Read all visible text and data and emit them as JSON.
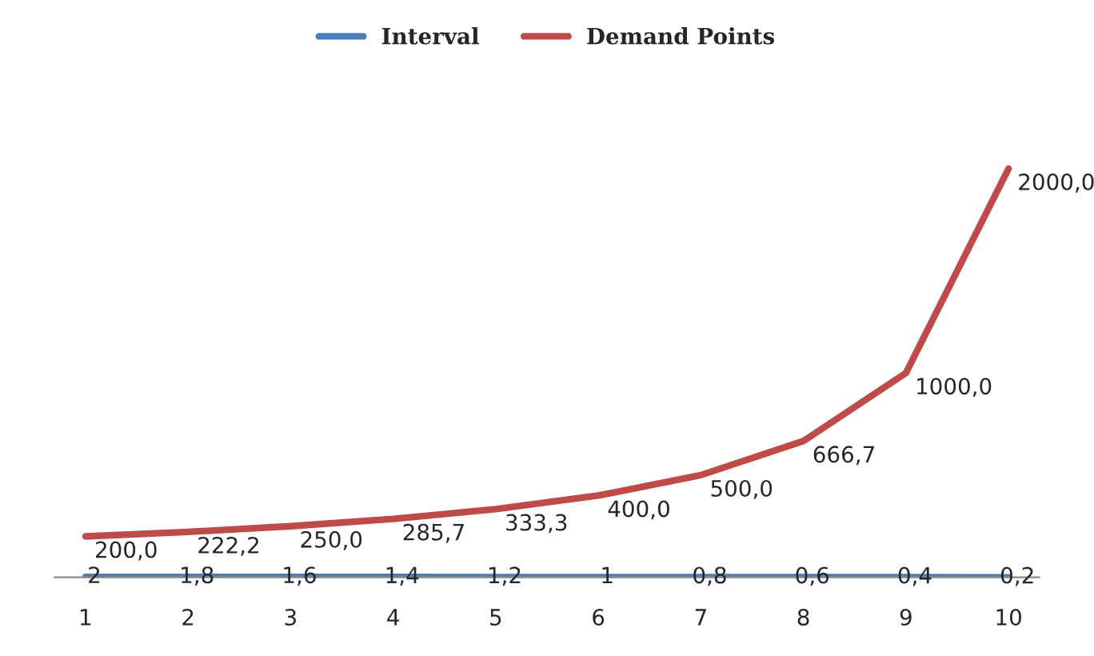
{
  "chart_data": {
    "type": "line",
    "categories": [
      "1",
      "2",
      "3",
      "4",
      "5",
      "6",
      "7",
      "8",
      "9",
      "10"
    ],
    "series": [
      {
        "name": "Interval",
        "color": "#4a7ebb",
        "values": [
          2,
          1.8,
          1.6,
          1.4,
          1.2,
          1,
          0.8,
          0.6,
          0.4,
          0.2
        ],
        "value_labels": [
          "2",
          "1,8",
          "1,6",
          "1,4",
          "1,2",
          "1",
          "0,8",
          "0,6",
          "0,4",
          "0,2"
        ]
      },
      {
        "name": "Demand Points",
        "color": "#be4b48",
        "values": [
          200.0,
          222.2,
          250.0,
          285.7,
          333.3,
          400.0,
          500.0,
          666.7,
          1000.0,
          2000.0
        ],
        "value_labels": [
          "200,0",
          "222,2",
          "250,0",
          "285,7",
          "333,3",
          "400,0",
          "500,0",
          "666,7",
          "1000,0",
          "2000,0"
        ]
      }
    ],
    "legend": "top",
    "grid": false,
    "marker": "none",
    "line_style": "solid"
  }
}
